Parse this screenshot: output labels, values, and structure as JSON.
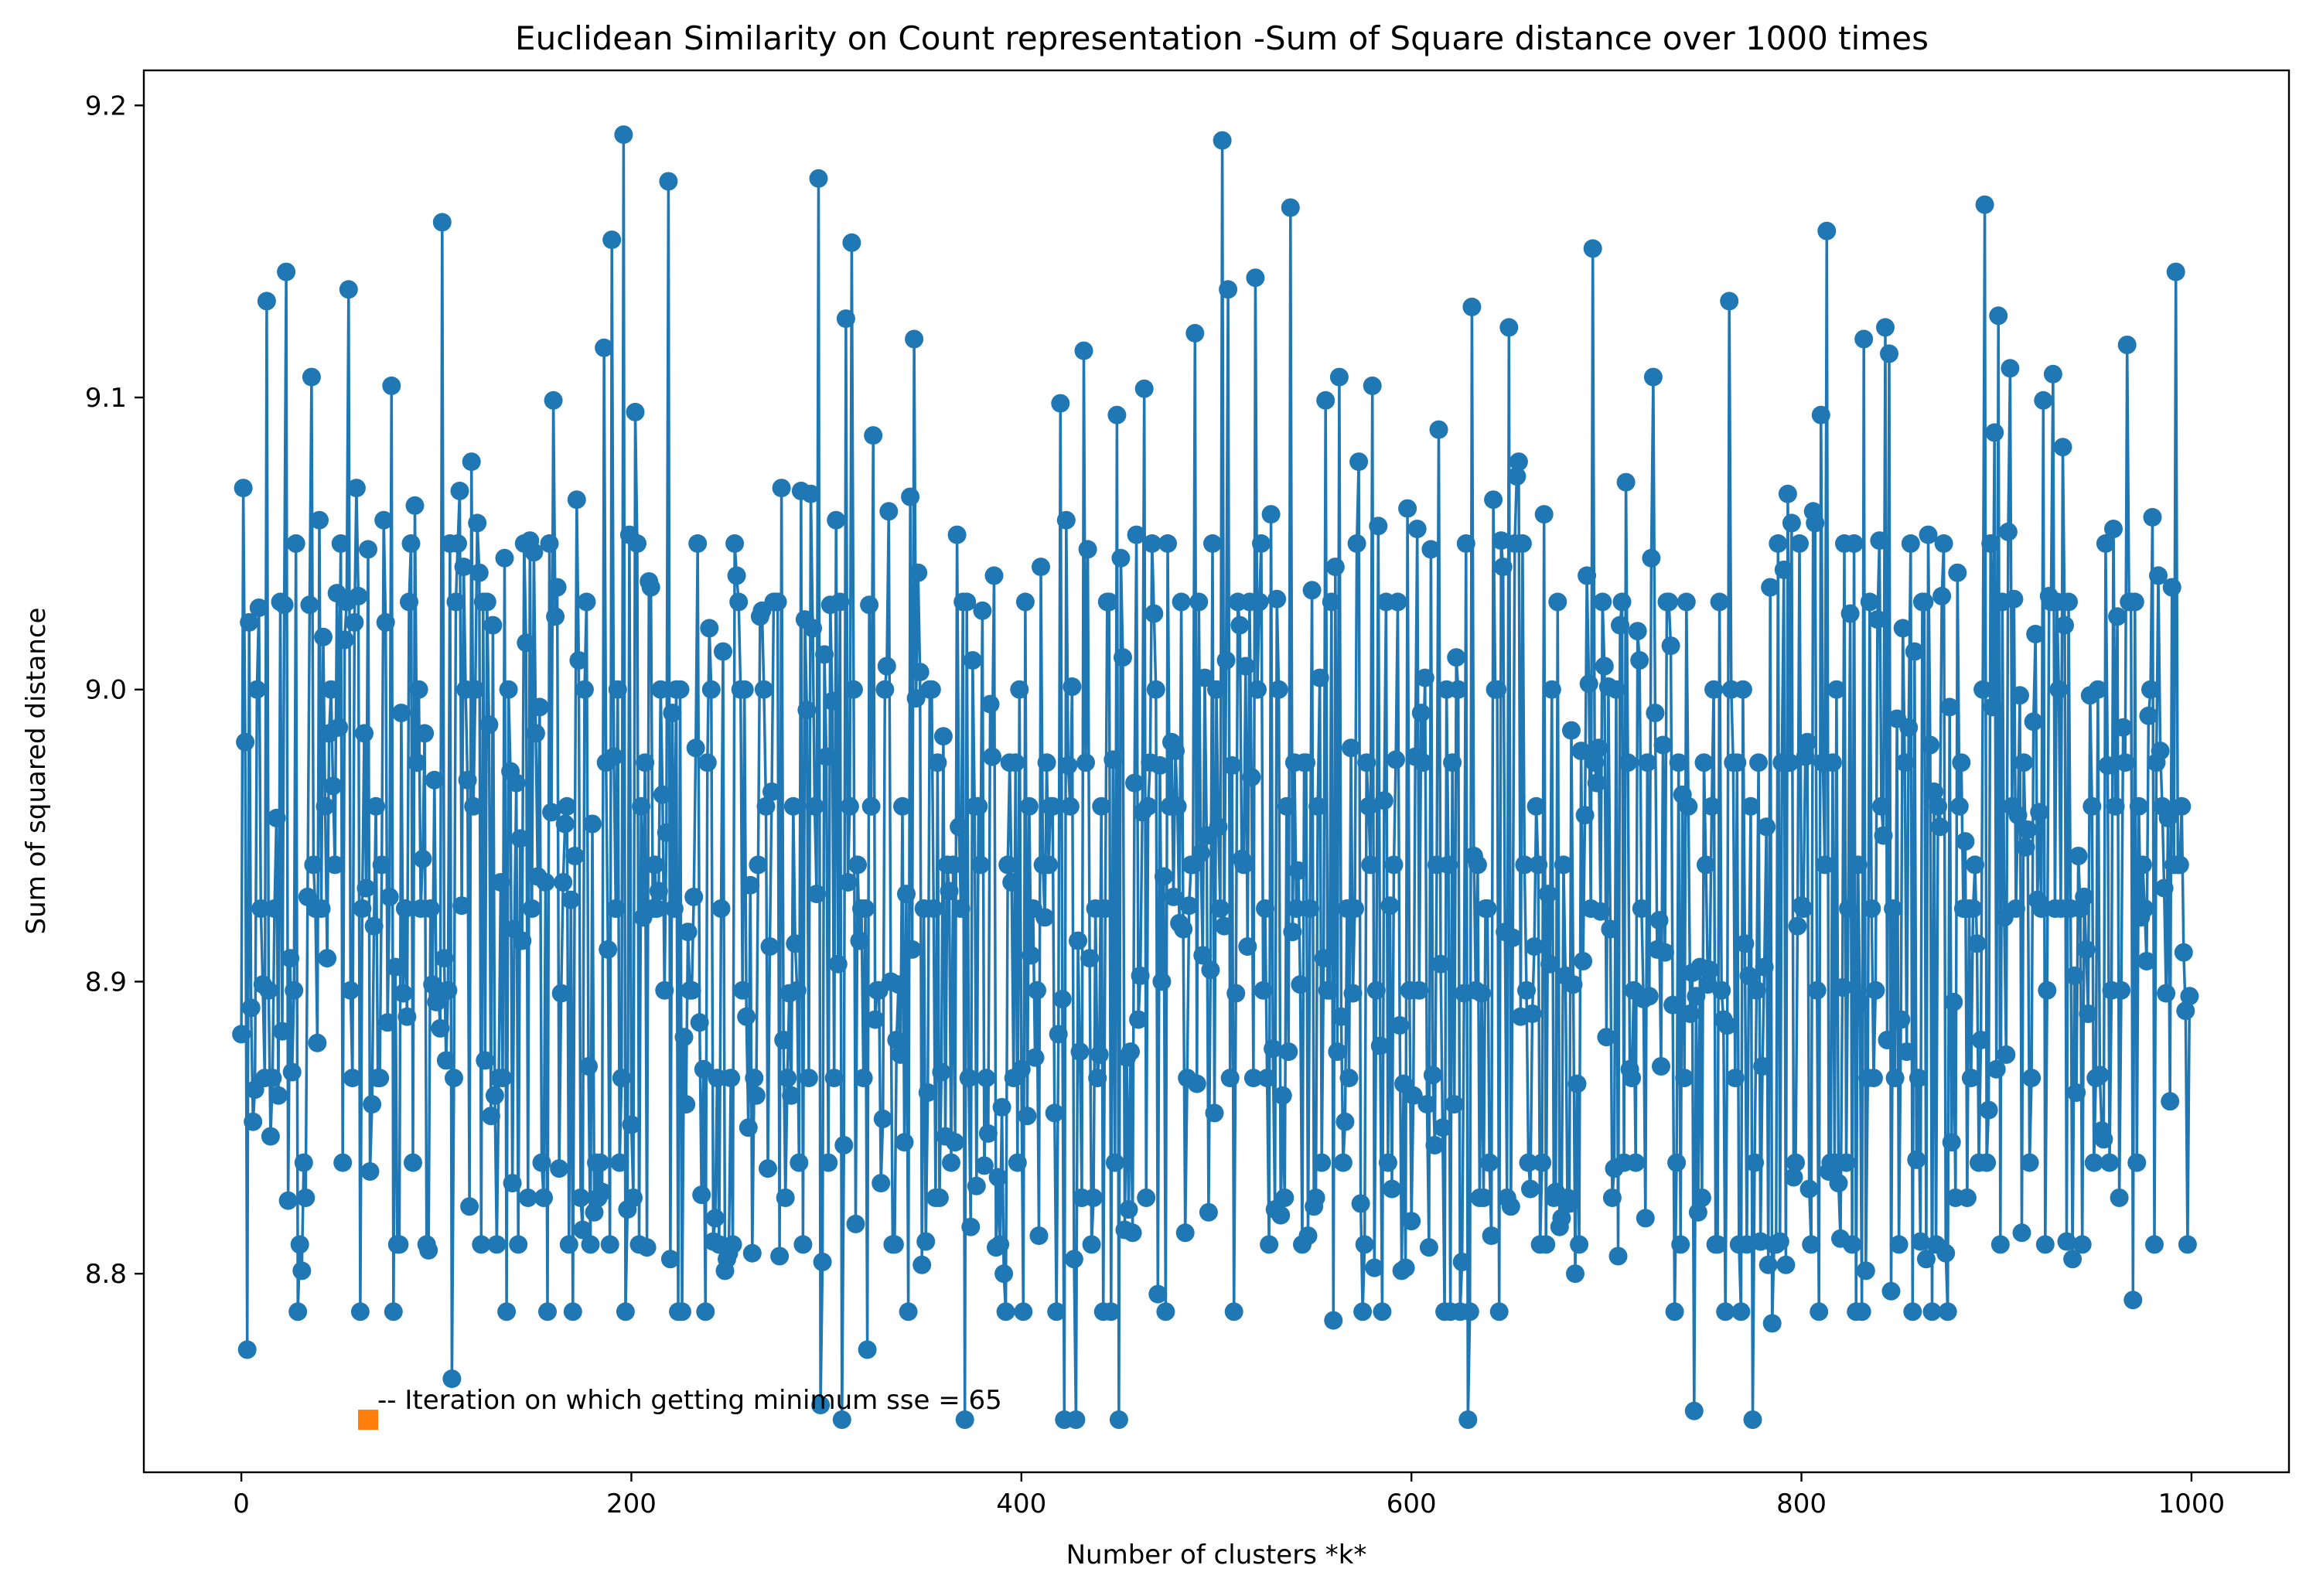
{
  "chart_data": {
    "type": "line",
    "title": "Euclidean Similarity on Count representation -Sum of Square distance over 1000 times",
    "xlabel": "Number of clusters *k*",
    "ylabel": "Sum of squared distance",
    "xlim": [
      -50,
      1050
    ],
    "ylim": [
      8.732,
      9.212
    ],
    "xticks": [
      0,
      200,
      400,
      600,
      800,
      1000
    ],
    "yticks": [
      8.8,
      8.9,
      9.0,
      9.1,
      9.2
    ],
    "ytick_labels": [
      "8.8",
      "8.9",
      "9.0",
      "9.1",
      "9.2"
    ],
    "grid": false,
    "legend": "none",
    "series": [
      {
        "marker": "circle",
        "color": "#1f77b4",
        "x_start": 0,
        "x_step": 1,
        "n_points": 1000,
        "values_min": 8.75,
        "values_max": 9.19
      },
      {
        "marker": "square",
        "color": "#ff7f0e",
        "x": [
          65
        ],
        "y": [
          8.75
        ]
      }
    ],
    "highlighted_points": [
      {
        "x": 3,
        "y": 8.774
      },
      {
        "x": 23,
        "y": 9.143
      },
      {
        "x": 36,
        "y": 9.107
      },
      {
        "x": 55,
        "y": 9.137
      },
      {
        "x": 77,
        "y": 9.104
      },
      {
        "x": 186,
        "y": 9.117
      },
      {
        "x": 190,
        "y": 9.154
      },
      {
        "x": 196,
        "y": 9.19
      },
      {
        "x": 308,
        "y": 8.75
      },
      {
        "x": 310,
        "y": 9.127
      },
      {
        "x": 371,
        "y": 8.75
      },
      {
        "x": 422,
        "y": 8.75
      },
      {
        "x": 428,
        "y": 8.75
      },
      {
        "x": 432,
        "y": 9.116
      },
      {
        "x": 450,
        "y": 8.75
      },
      {
        "x": 503,
        "y": 9.188
      },
      {
        "x": 506,
        "y": 9.137
      },
      {
        "x": 520,
        "y": 9.141
      },
      {
        "x": 629,
        "y": 8.75
      },
      {
        "x": 693,
        "y": 9.151
      },
      {
        "x": 775,
        "y": 8.75
      },
      {
        "x": 843,
        "y": 9.124
      },
      {
        "x": 967,
        "y": 9.118
      },
      {
        "x": 992,
        "y": 9.143
      },
      {
        "x": 999,
        "y": 8.895
      }
    ],
    "annotation": "-- Iteration on which getting minimum sse = 65"
  }
}
